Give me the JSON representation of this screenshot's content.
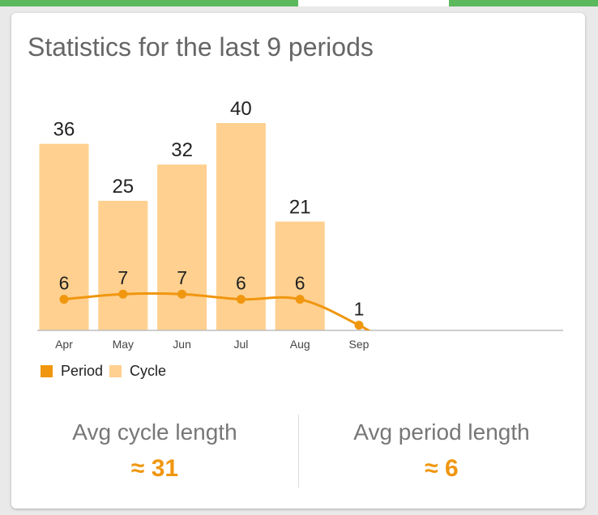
{
  "card": {
    "title": "Statistics for the last 9 periods"
  },
  "chart_data": {
    "type": "bar",
    "categories": [
      "Apr",
      "May",
      "Jun",
      "Jul",
      "Aug",
      "Sep"
    ],
    "series": [
      {
        "name": "Cycle",
        "type": "bar",
        "values": [
          36,
          25,
          32,
          40,
          21,
          null
        ],
        "color": "#ffd08f"
      },
      {
        "name": "Period",
        "type": "line",
        "values": [
          6,
          7,
          7,
          6,
          6,
          1
        ],
        "color": "#f0960f"
      }
    ],
    "ylim": [
      0,
      44
    ],
    "legend_position": "bottom-left",
    "grid": false
  },
  "legend": {
    "items": [
      {
        "label": "Period",
        "color": "#f0960f"
      },
      {
        "label": "Cycle",
        "color": "#ffd08f"
      }
    ]
  },
  "stats": {
    "avg_cycle": {
      "label": "Avg cycle length",
      "value": "≈ 31"
    },
    "avg_period": {
      "label": "Avg period length",
      "value": "≈ 6"
    },
    "value_color": "#f0960f"
  },
  "colors": {
    "top_bar": "#5cb85c",
    "axis": "#bdbdbd"
  }
}
